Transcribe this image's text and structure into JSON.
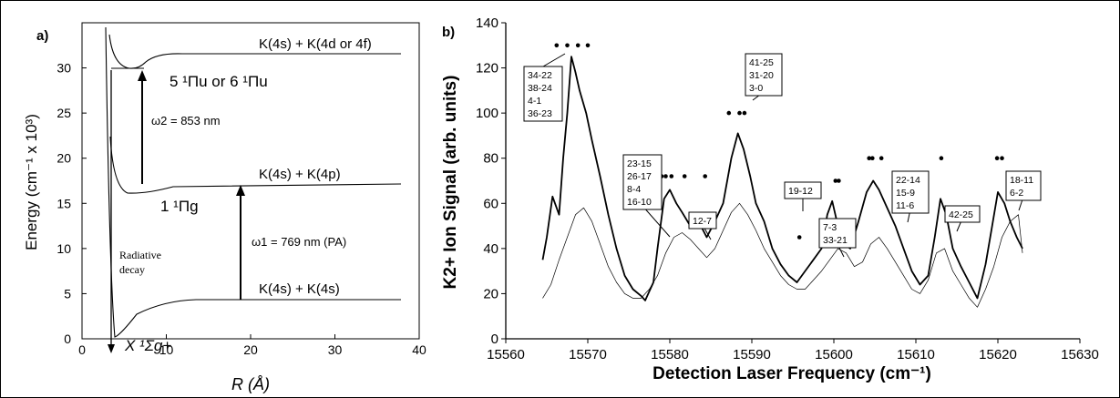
{
  "panel_a": {
    "letter": "a)",
    "ylabel": "Energy (cm⁻¹ x 10³)",
    "xlabel": "R (Å)",
    "x_ticks": [
      "0",
      "10",
      "20",
      "30",
      "40"
    ],
    "y_ticks": [
      "0",
      "5",
      "10",
      "15",
      "20",
      "25",
      "30"
    ],
    "asymptote_top": "K(4s) + K(4d or 4f)",
    "asymptote_mid": "K(4s) + K(4p)",
    "asymptote_low": "K(4s) + K(4s)",
    "state_upper": "5 ¹Πu or 6 ¹Πu",
    "state_mid": "1 ¹Πg",
    "state_ground": "X ¹Σg+",
    "omega2": "ω2 = 853 nm",
    "omega1": "ω1 = 769 nm (PA)",
    "radiative_line1": "Radiative",
    "radiative_line2": "decay"
  },
  "chart_data": [
    {
      "type": "diagram",
      "title": "",
      "xlabel": "R (Å)",
      "ylabel": "Energy (cm⁻¹ x 10³)",
      "xlim": [
        0,
        40
      ],
      "ylim": [
        0,
        35
      ],
      "asymptotes": [
        {
          "label": "K(4s) + K(4d or 4f)",
          "energy": 32
        },
        {
          "label": "K(4s) + K(4p)",
          "energy": 17.5
        },
        {
          "label": "K(4s) + K(4s)",
          "energy": 4.5
        }
      ],
      "transitions": [
        {
          "label": "ω1 = 769 nm (PA)",
          "x": 18.5,
          "from": 4.5,
          "to": 17.5
        },
        {
          "label": "ω2 = 853 nm",
          "x": 7.2,
          "from": 17.5,
          "to": 30.2
        }
      ]
    },
    {
      "type": "line",
      "title": "",
      "letter": "b)",
      "xlabel": "Detection Laser Frequency (cm⁻¹)",
      "ylabel": "K2+ Ion Signal (arb. units)",
      "xlim": [
        15560,
        15630
      ],
      "ylim": [
        0,
        140
      ],
      "x_ticks": [
        15560,
        15570,
        15580,
        15590,
        15600,
        15610,
        15620,
        15630
      ],
      "y_ticks": [
        0,
        20,
        40,
        60,
        80,
        100,
        120,
        140
      ],
      "series": [
        {
          "style": "thick",
          "x": [
            15564.5,
            15565,
            15565.7,
            15566.5,
            15567,
            15567.5,
            15568,
            15568.5,
            15569,
            15569.8,
            15570.5,
            15571.5,
            15572.5,
            15573.5,
            15574.5,
            15575.5,
            15576.5,
            15577,
            15578,
            15578.5,
            15579.3,
            15580,
            15580.8,
            15581.5,
            15582.5,
            15583.5,
            15584.5,
            15585.5,
            15586.5,
            15587.5,
            15588.3,
            15589,
            15589.8,
            15590.5,
            15591.5,
            15592.5,
            15593.5,
            15594.5,
            15595.5,
            15596.5,
            15597.5,
            15598.5,
            15599.2,
            15599.8,
            15600.5,
            15601.3,
            15602,
            15603,
            15604,
            15604.8,
            15605.5,
            15606.5,
            15607.5,
            15608.5,
            15609.5,
            15610.5,
            15611.5,
            15612.3,
            15613,
            15613.7,
            15614.5,
            15615.5,
            15616.5,
            15617.5,
            15618.5,
            15619.3,
            15620,
            15620.8,
            15621.5,
            15622.3,
            15623
          ],
          "y": [
            35,
            45,
            63,
            55,
            80,
            100,
            125,
            118,
            110,
            100,
            88,
            72,
            55,
            40,
            28,
            22,
            19,
            17,
            25,
            40,
            62,
            66,
            60,
            56,
            50,
            52,
            45,
            52,
            60,
            80,
            91,
            84,
            72,
            60,
            52,
            40,
            33,
            28,
            25,
            30,
            35,
            40,
            55,
            61,
            50,
            42,
            40,
            52,
            65,
            70,
            66,
            58,
            50,
            40,
            30,
            24,
            28,
            45,
            62,
            55,
            40,
            32,
            25,
            18,
            33,
            50,
            65,
            60,
            52,
            45,
            40
          ]
        },
        {
          "style": "thin",
          "x": [
            15564.5,
            15565.5,
            15566.5,
            15567.5,
            15568.5,
            15569.5,
            15570.5,
            15571.5,
            15572.5,
            15573.5,
            15574.5,
            15575.5,
            15576.5,
            15577.5,
            15578.5,
            15579.5,
            15580.5,
            15581.5,
            15582.5,
            15583.5,
            15584.5,
            15585.5,
            15586.5,
            15587.5,
            15588.5,
            15589.5,
            15590.5,
            15591.5,
            15592.5,
            15593.5,
            15594.5,
            15595.5,
            15596.5,
            15597.5,
            15598.5,
            15599.5,
            15600.5,
            15601.5,
            15602.5,
            15603.5,
            15604.5,
            15605.5,
            15606.5,
            15607.5,
            15608.5,
            15609.5,
            15610.5,
            15611.5,
            15612.5,
            15613.5,
            15614.5,
            15615.5,
            15616.5,
            15617.5,
            15618.5,
            15619.5,
            15620.5,
            15621.5,
            15622.5,
            15623
          ],
          "y": [
            18,
            24,
            35,
            45,
            55,
            58,
            52,
            42,
            32,
            25,
            20,
            18,
            18,
            22,
            28,
            38,
            45,
            47,
            44,
            40,
            36,
            40,
            48,
            56,
            60,
            55,
            48,
            40,
            34,
            28,
            24,
            22,
            22,
            26,
            30,
            35,
            40,
            38,
            32,
            34,
            42,
            45,
            40,
            34,
            28,
            22,
            20,
            26,
            38,
            40,
            30,
            24,
            18,
            14,
            22,
            32,
            45,
            52,
            55,
            38
          ]
        }
      ],
      "markers": [
        {
          "x": [
            15566.2,
            15567.5,
            15568.8,
            15570
          ],
          "y": 130
        },
        {
          "x": [
            15579,
            15579.5,
            15580.2
          ],
          "y": 72
        },
        {
          "x": [
            15581.8
          ],
          "y": 72
        },
        {
          "x": [
            15584.3
          ],
          "y": 72
        },
        {
          "x": [
            15587.2,
            15588.5,
            15589.1
          ],
          "y": 100
        },
        {
          "x": [
            15595.8
          ],
          "y": 45
        },
        {
          "x": [
            15600.2,
            15600.6
          ],
          "y": 70
        },
        {
          "x": [
            15604.3,
            15604.7,
            15605.8
          ],
          "y": 80
        },
        {
          "x": [
            15613.1
          ],
          "y": 80
        },
        {
          "x": [
            15619.9,
            15620.5
          ],
          "y": 80
        }
      ],
      "annotations": [
        {
          "lines": [
            "34-22",
            "38-24",
            "4-1",
            "36-23"
          ]
        },
        {
          "lines": [
            "23-15",
            "26-17",
            "8-4",
            "16-10"
          ]
        },
        {
          "lines": [
            "12-7"
          ]
        },
        {
          "lines": [
            "41-25",
            "31-20",
            "3-0"
          ]
        },
        {
          "lines": [
            "19-12"
          ]
        },
        {
          "lines": [
            "7-3",
            "33-21"
          ]
        },
        {
          "lines": [
            "22-14",
            "15-9",
            "11-6"
          ]
        },
        {
          "lines": [
            "42-25"
          ]
        },
        {
          "lines": [
            "18-11",
            "6-2"
          ]
        }
      ]
    }
  ]
}
